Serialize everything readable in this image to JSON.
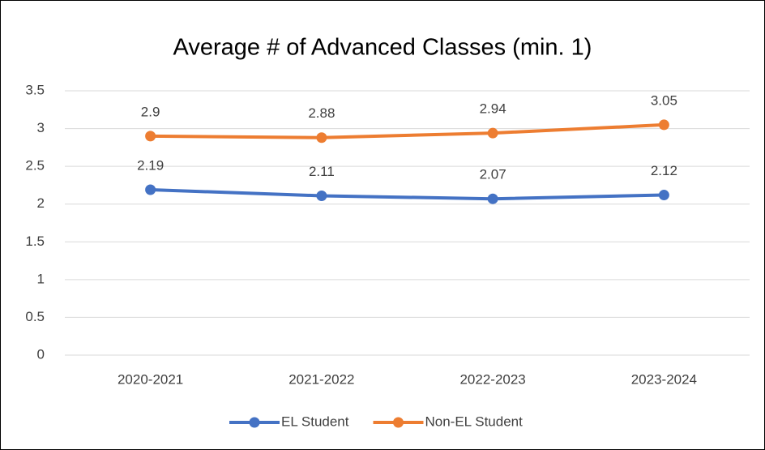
{
  "chart_data": {
    "type": "line",
    "title": "Average # of Advanced Classes (min. 1)",
    "categories": [
      "2020-2021",
      "2021-2022",
      "2022-2023",
      "2023-2024"
    ],
    "series": [
      {
        "name": "EL Student",
        "color": "#4472c4",
        "values": [
          2.19,
          2.11,
          2.07,
          2.12
        ]
      },
      {
        "name": "Non-EL Student",
        "color": "#ed7d31",
        "values": [
          2.9,
          2.88,
          2.94,
          3.05
        ]
      }
    ],
    "ylim": [
      0,
      3.5
    ],
    "yticks": [
      0,
      0.5,
      1,
      1.5,
      2,
      2.5,
      3,
      3.5
    ],
    "grid": true,
    "legend": "bottom"
  }
}
